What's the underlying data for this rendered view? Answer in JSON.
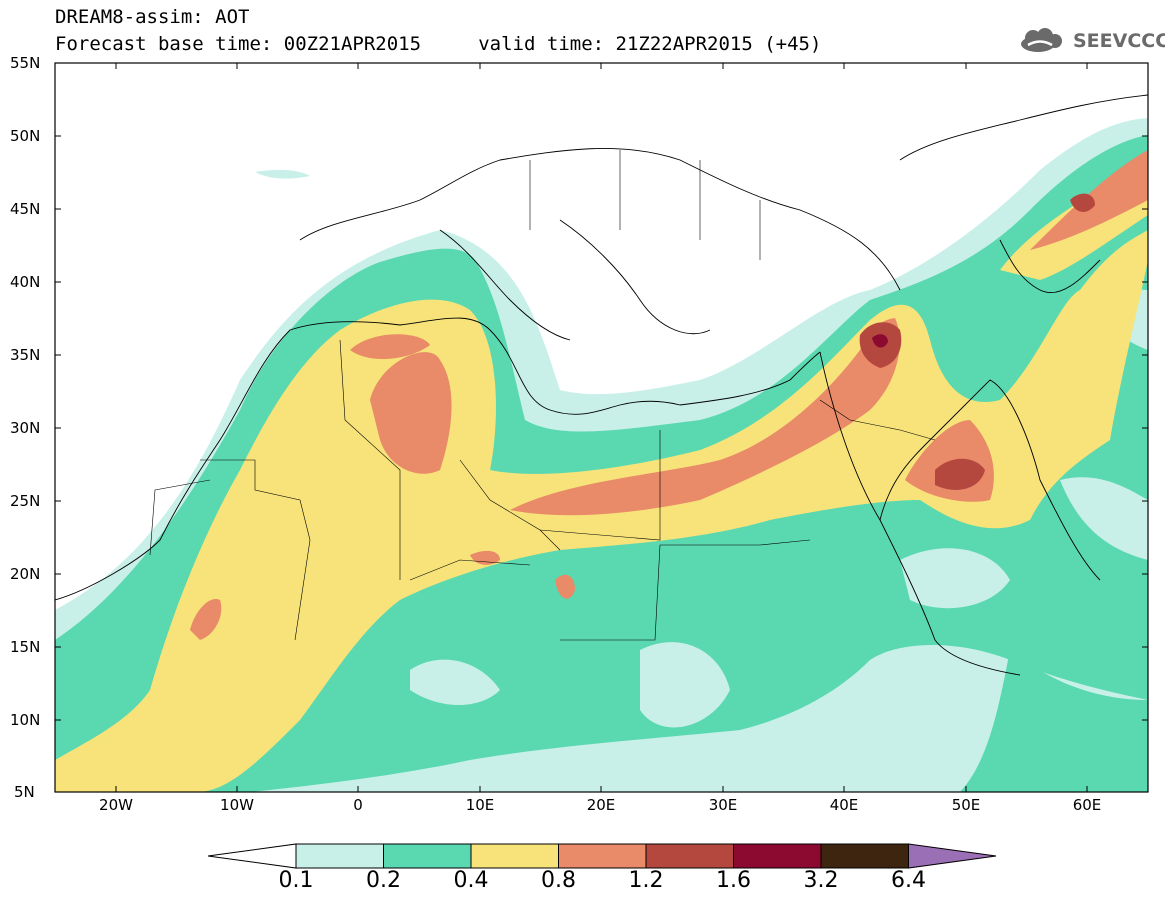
{
  "header": {
    "title_line1": "DREAM8-assim: AOT",
    "title_line2": "Forecast base time: 00Z21APR2015     valid time: 21Z22APR2015 (+45)",
    "logo_text": "SEEVCCC"
  },
  "map": {
    "variable": "AOT",
    "lon_range": [
      -25,
      65
    ],
    "lat_range": [
      5,
      55
    ],
    "lat_labels": [
      "55N",
      "50N",
      "45N",
      "40N",
      "35N",
      "30N",
      "25N",
      "20N",
      "15N",
      "10N",
      "5N"
    ],
    "lon_labels": [
      "20W",
      "10W",
      "0",
      "10E",
      "20E",
      "30E",
      "40E",
      "50E",
      "60E"
    ]
  },
  "colorbar": {
    "labels": [
      "0.1",
      "0.2",
      "0.4",
      "0.8",
      "1.2",
      "1.6",
      "3.2",
      "6.4"
    ],
    "colors": [
      "#c8f0e8",
      "#5ad8b0",
      "#f7e37a",
      "#e98a68",
      "#b5483e",
      "#8c0a30",
      "#3d2510",
      "#9b6fb5"
    ],
    "under_color": "#ffffff"
  }
}
